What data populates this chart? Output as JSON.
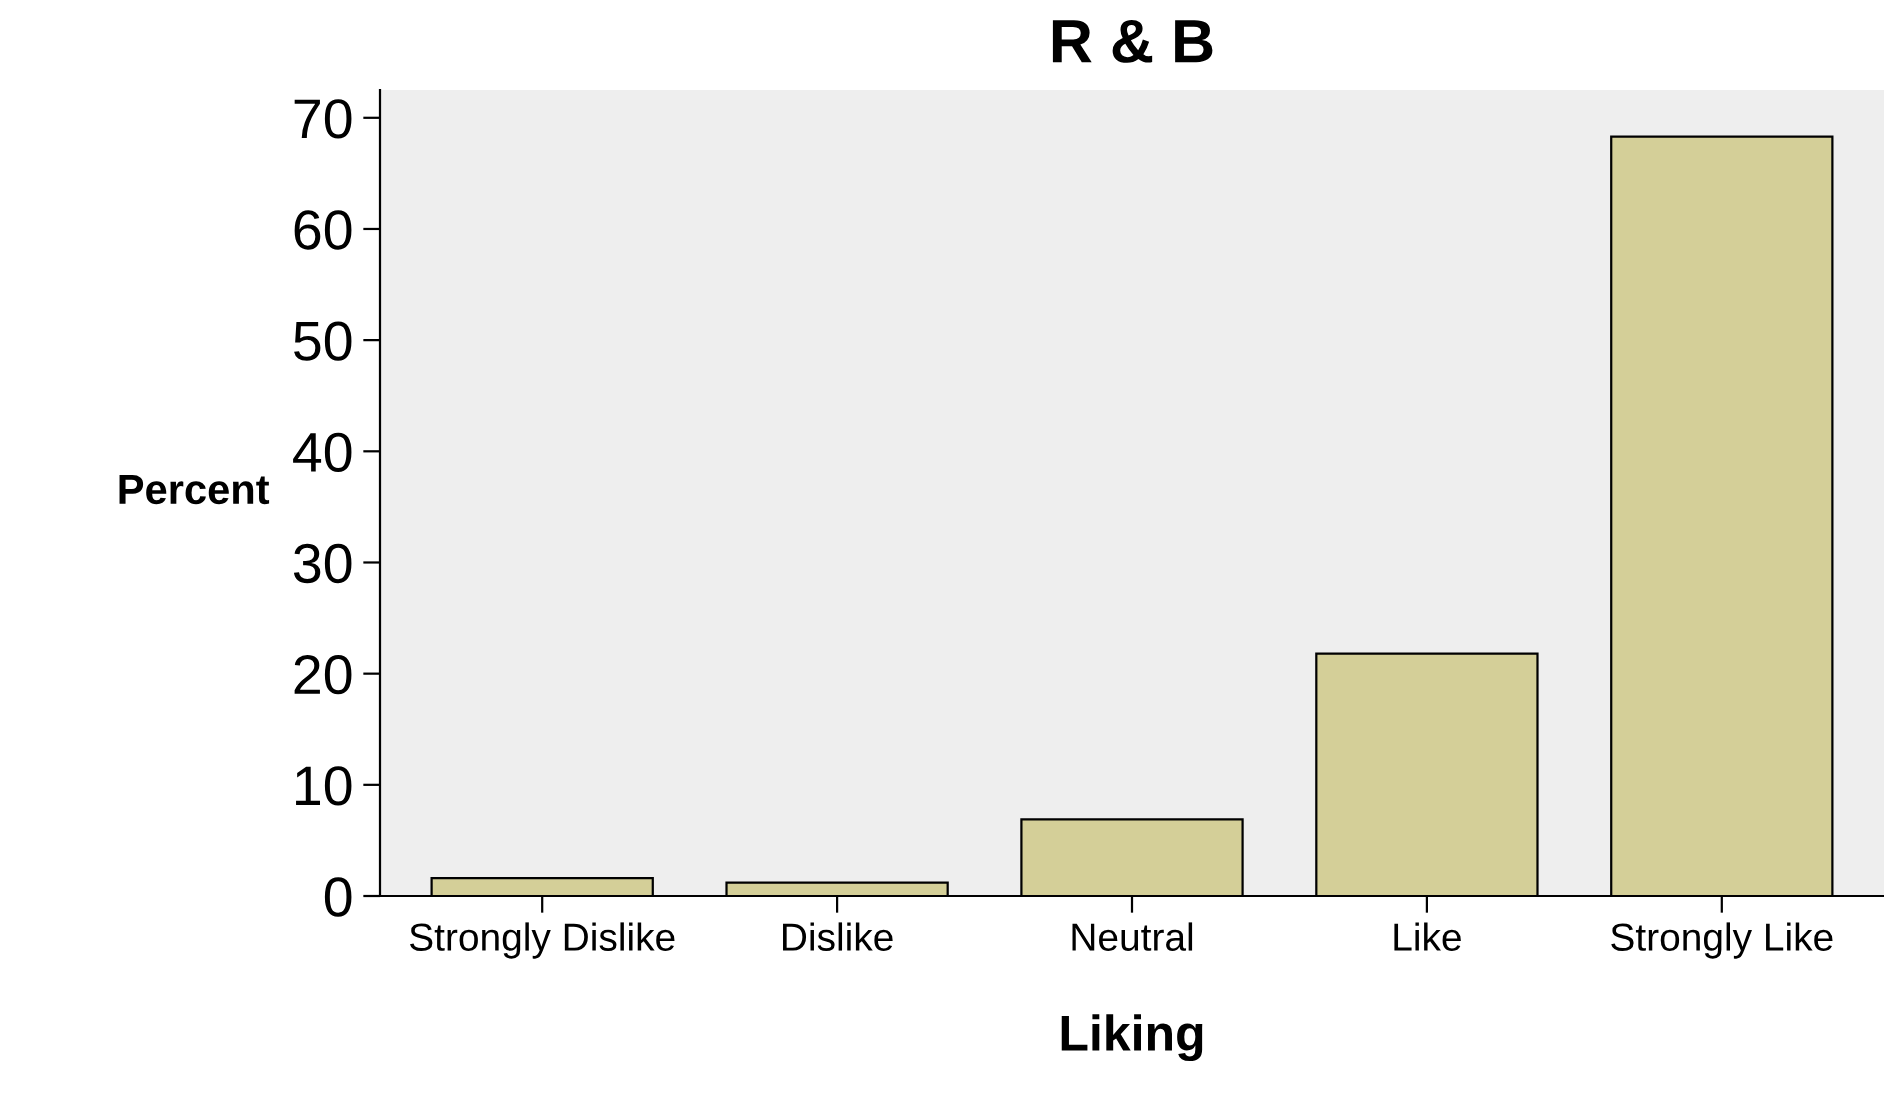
{
  "chart_data": {
    "type": "bar",
    "title": "R & B",
    "xlabel": "Liking",
    "ylabel": "Percent",
    "categories": [
      "Strongly Dislike",
      "Dislike",
      "Neutral",
      "Like",
      "Strongly Like"
    ],
    "values": [
      1.6,
      1.2,
      6.9,
      21.8,
      68.3
    ],
    "color": "#d4cf98",
    "ylim": [
      0,
      72.5
    ],
    "yticks": [
      0,
      10,
      20,
      30,
      40,
      50,
      60,
      70
    ],
    "grid": false,
    "legend": false
  }
}
